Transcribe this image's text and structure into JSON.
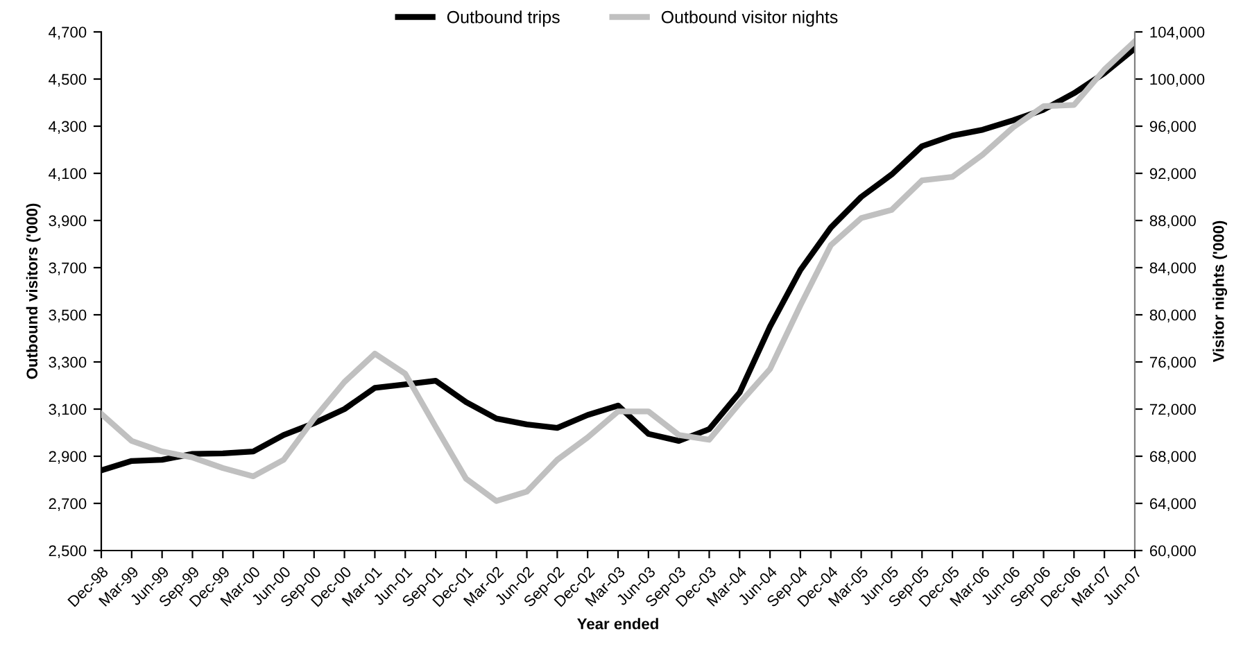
{
  "chart_data": {
    "type": "line",
    "xlabel": "Year ended",
    "ylabel": "Outbound visitors ('000)",
    "y2label": "Visitor nights ('000)",
    "categories": [
      "Dec-98",
      "Mar-99",
      "Jun-99",
      "Sep-99",
      "Dec-99",
      "Mar-00",
      "Jun-00",
      "Sep-00",
      "Dec-00",
      "Mar-01",
      "Jun-01",
      "Sep-01",
      "Dec-01",
      "Mar-02",
      "Jun-02",
      "Sep-02",
      "Dec-02",
      "Mar-03",
      "Jun-03",
      "Sep-03",
      "Dec-03",
      "Mar-04",
      "Jun-04",
      "Sep-04",
      "Dec-04",
      "Mar-05",
      "Jun-05",
      "Sep-05",
      "Dec-05",
      "Mar-06",
      "Jun-06",
      "Sep-06",
      "Dec-06",
      "Mar-07",
      "Jun-07"
    ],
    "series": [
      {
        "name": "Outbound trips",
        "color": "#000000",
        "values": [
          2840,
          2880,
          2885,
          2910,
          2912,
          2920,
          2990,
          3040,
          3100,
          3190,
          3205,
          3220,
          3130,
          3060,
          3035,
          3020,
          3075,
          3115,
          2995,
          2965,
          3015,
          3170,
          3450,
          3690,
          3870,
          4000,
          4095,
          4215,
          4260,
          4285,
          4325,
          4370,
          4440,
          4525,
          4630
        ]
      },
      {
        "name": "Outbound visitor nights",
        "color": "#c0c0c0",
        "axis": "y2",
        "values": [
          71600,
          69300,
          68400,
          67900,
          67000,
          66300,
          67700,
          71200,
          74300,
          76700,
          75000,
          70500,
          66100,
          64200,
          65000,
          67700,
          69600,
          71800,
          71800,
          69800,
          69400,
          72500,
          75400,
          80800,
          85900,
          88200,
          88900,
          91400,
          91700,
          93600,
          95900,
          97700,
          97800,
          100800,
          103200
        ]
      }
    ],
    "ylim": [
      2500,
      4700
    ],
    "yticks": [
      {
        "value": 2500,
        "label": "2,500"
      },
      {
        "value": 2700,
        "label": "2,700"
      },
      {
        "value": 2900,
        "label": "2,900"
      },
      {
        "value": 3100,
        "label": "3,100"
      },
      {
        "value": 3300,
        "label": "3,300"
      },
      {
        "value": 3500,
        "label": "3,500"
      },
      {
        "value": 3700,
        "label": "3,700"
      },
      {
        "value": 3900,
        "label": "3,900"
      },
      {
        "value": 4100,
        "label": "4,100"
      },
      {
        "value": 4300,
        "label": "4,300"
      },
      {
        "value": 4500,
        "label": "4,500"
      },
      {
        "value": 4700,
        "label": "4,700"
      }
    ],
    "y2lim": [
      60000,
      104000
    ],
    "y2ticks": [
      {
        "value": 60000,
        "label": "60,000"
      },
      {
        "value": 64000,
        "label": "64,000"
      },
      {
        "value": 68000,
        "label": "68,000"
      },
      {
        "value": 72000,
        "label": "72,000"
      },
      {
        "value": 76000,
        "label": "76,000"
      },
      {
        "value": 80000,
        "label": "80,000"
      },
      {
        "value": 84000,
        "label": "84,000"
      },
      {
        "value": 88000,
        "label": "88,000"
      },
      {
        "value": 92000,
        "label": "92,000"
      },
      {
        "value": 96000,
        "label": "96,000"
      },
      {
        "value": 100000,
        "label": "100,000"
      },
      {
        "value": 104000,
        "label": "104,000"
      }
    ],
    "grid": false,
    "legend": "top",
    "marker": "none",
    "line_style": "solid"
  }
}
